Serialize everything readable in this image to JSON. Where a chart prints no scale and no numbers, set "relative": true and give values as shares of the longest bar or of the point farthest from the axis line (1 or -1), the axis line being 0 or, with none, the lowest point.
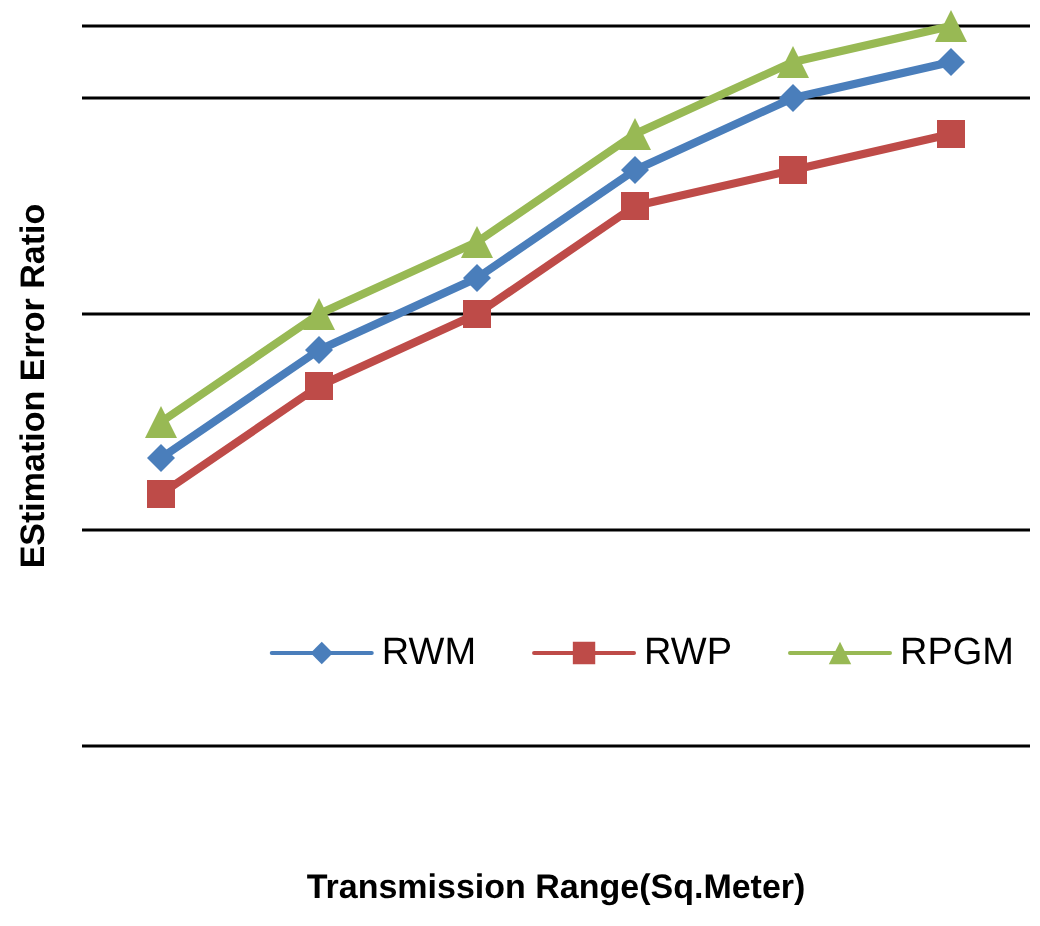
{
  "chart_data": {
    "type": "line",
    "xlabel": "Transmission Range(Sq.Meter)",
    "ylabel": "EStimation Error Ratio",
    "categories": [
      null,
      null,
      null,
      null,
      null,
      null
    ],
    "relative": true,
    "grid": "y",
    "legend": "bottom right",
    "line_style": "solid",
    "series": [
      {
        "name": "RWM",
        "color": "#4a7ebb",
        "marker": "diamond",
        "values": [
          0.4,
          0.55,
          0.65,
          0.8,
          0.9,
          0.95
        ]
      },
      {
        "name": "RWP",
        "color": "#be4b48",
        "marker": "square",
        "values": [
          0.35,
          0.5,
          0.6,
          0.75,
          0.8,
          0.85
        ]
      },
      {
        "name": "RPGM",
        "color": "#98b954",
        "marker": "triangle",
        "values": [
          0.45,
          0.6,
          0.7,
          0.85,
          0.95,
          1
        ]
      }
    ]
  }
}
